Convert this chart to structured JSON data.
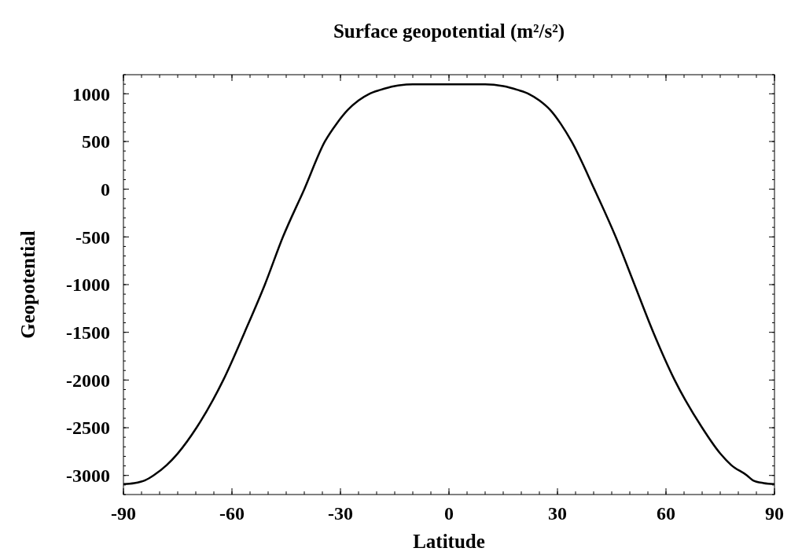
{
  "chart_data": {
    "type": "line",
    "title": "Surface geopotential (m²/s²)",
    "xlabel": "Latitude",
    "ylabel": "Geopotential",
    "x": [
      -90,
      -87,
      -84,
      -81.7,
      -78,
      -75,
      -69.8,
      -62.4,
      -56.5,
      -50.9,
      -45.9,
      -40,
      -34.3,
      -31,
      -28,
      -25,
      -22,
      -19,
      -15,
      -10,
      0,
      10,
      15,
      19,
      22,
      25,
      28,
      31,
      33.9,
      40.2,
      46.1,
      51.3,
      56.5,
      62.4,
      70,
      75,
      78,
      82.4,
      84,
      87,
      90
    ],
    "series": [
      {
        "color": "#000000",
        "values": [
          -3090,
          -3080,
          -3050,
          -3000,
          -2890,
          -2770,
          -2500,
          -2000,
          -1500,
          -1000,
          -500,
          0,
          500,
          690,
          830,
          930,
          1000,
          1040,
          1080,
          1100,
          1100,
          1100,
          1080,
          1040,
          1000,
          930,
          830,
          680,
          500,
          0,
          -500,
          -1000,
          -1500,
          -2000,
          -2500,
          -2770,
          -2890,
          -3000,
          -3050,
          -3080,
          -3090
        ]
      }
    ],
    "xlim": [
      -90,
      90
    ],
    "xticks": [
      -90,
      -60,
      -30,
      0,
      30,
      60,
      90
    ],
    "ylim": [
      -3200,
      1200
    ],
    "yticks": [
      -3000,
      -2500,
      -2000,
      -1500,
      -1000,
      -500,
      0,
      500,
      1000
    ],
    "grid": false,
    "marker": "none",
    "line_style": "solid"
  }
}
